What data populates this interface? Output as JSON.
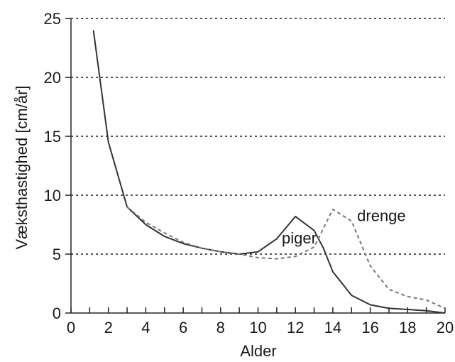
{
  "chart_data": {
    "type": "line",
    "title": "",
    "xlabel": "Alder",
    "ylabel": "Væksthastighed [cm/år]",
    "xlim": [
      0,
      20
    ],
    "ylim": [
      0,
      25
    ],
    "xticks": [
      0,
      2,
      4,
      6,
      8,
      10,
      12,
      14,
      16,
      18,
      20
    ],
    "yticks": [
      0,
      5,
      10,
      15,
      20,
      25
    ],
    "grid": "horizontal dotted",
    "series": [
      {
        "name": "piger",
        "style": "solid",
        "color": "#333333",
        "x": [
          1.2,
          2,
          3,
          4,
          5,
          6,
          7,
          8,
          9,
          10,
          11,
          12,
          13,
          13.5,
          14,
          15,
          16,
          17,
          18,
          19,
          20
        ],
        "y": [
          24,
          14.5,
          9,
          7.5,
          6.5,
          5.9,
          5.5,
          5.2,
          5.0,
          5.2,
          6.3,
          8.2,
          7.0,
          5.5,
          3.5,
          1.5,
          0.7,
          0.4,
          0.3,
          0.2,
          0
        ]
      },
      {
        "name": "drenge",
        "style": "dashed",
        "color": "#777777",
        "x": [
          3,
          4,
          5,
          6,
          7,
          8,
          9,
          10,
          11,
          12,
          13,
          14,
          15,
          16,
          17,
          18,
          19,
          20
        ],
        "y": [
          9,
          7.7,
          6.8,
          6.0,
          5.5,
          5.2,
          5.0,
          4.7,
          4.6,
          4.8,
          5.6,
          8.8,
          7.8,
          4.0,
          2.0,
          1.4,
          1.1,
          0.4
        ]
      }
    ],
    "annotations": [
      {
        "text": "piger",
        "x": 12.2,
        "y": 5.9
      },
      {
        "text": "drenge",
        "x": 16.6,
        "y": 7.8
      }
    ]
  }
}
